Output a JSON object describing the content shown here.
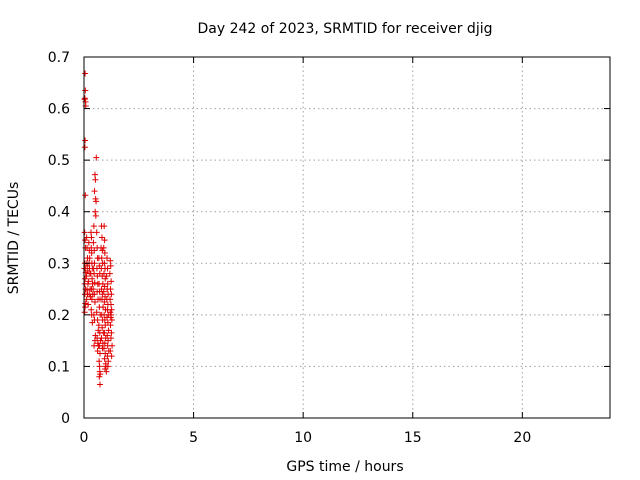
{
  "chart_data": {
    "type": "scatter",
    "title": "Day 242 of 2023, SRMTID for receiver djig",
    "xlabel": "GPS time / hours",
    "ylabel": "SRMTID / TECUs",
    "xlim": [
      0,
      24
    ],
    "ylim": [
      0,
      0.7
    ],
    "x_ticks": [
      0,
      5,
      10,
      15,
      20
    ],
    "x_tick_labels": [
      "0",
      "5",
      "10",
      "15",
      "20"
    ],
    "y_ticks": [
      0,
      0.1,
      0.2,
      0.3,
      0.4,
      0.5,
      0.6,
      0.7
    ],
    "y_tick_labels": [
      "0",
      "0.1",
      "0.2",
      "0.3",
      "0.4",
      "0.5",
      "0.6",
      "0.7"
    ],
    "grid": true,
    "marker": "+",
    "color": "#e00000",
    "series": [
      {
        "name": "SRMTID",
        "points": [
          [
            0.05,
            0.668
          ],
          [
            0.06,
            0.635
          ],
          [
            0.04,
            0.62
          ],
          [
            0.07,
            0.613
          ],
          [
            0.08,
            0.605
          ],
          [
            0.03,
            0.618
          ],
          [
            0.05,
            0.538
          ],
          [
            0.04,
            0.525
          ],
          [
            0.06,
            0.432
          ],
          [
            0.03,
            0.36
          ],
          [
            0.05,
            0.345
          ],
          [
            0.07,
            0.33
          ],
          [
            0.04,
            0.3
          ],
          [
            0.06,
            0.29
          ],
          [
            0.02,
            0.29
          ],
          [
            0.08,
            0.282
          ],
          [
            0.05,
            0.27
          ],
          [
            0.03,
            0.26
          ],
          [
            0.07,
            0.25
          ],
          [
            0.04,
            0.24
          ],
          [
            0.06,
            0.222
          ],
          [
            0.05,
            0.215
          ],
          [
            0.03,
            0.205
          ],
          [
            0.12,
            0.35
          ],
          [
            0.14,
            0.33
          ],
          [
            0.16,
            0.31
          ],
          [
            0.13,
            0.3
          ],
          [
            0.15,
            0.295
          ],
          [
            0.17,
            0.285
          ],
          [
            0.11,
            0.275
          ],
          [
            0.18,
            0.26
          ],
          [
            0.14,
            0.248
          ],
          [
            0.16,
            0.24
          ],
          [
            0.12,
            0.23
          ],
          [
            0.19,
            0.22
          ],
          [
            0.22,
            0.34
          ],
          [
            0.24,
            0.325
          ],
          [
            0.26,
            0.31
          ],
          [
            0.23,
            0.3
          ],
          [
            0.25,
            0.29
          ],
          [
            0.27,
            0.28
          ],
          [
            0.21,
            0.265
          ],
          [
            0.28,
            0.25
          ],
          [
            0.24,
            0.24
          ],
          [
            0.3,
            0.235
          ],
          [
            0.32,
            0.36
          ],
          [
            0.34,
            0.35
          ],
          [
            0.33,
            0.33
          ],
          [
            0.35,
            0.32
          ],
          [
            0.36,
            0.3
          ],
          [
            0.38,
            0.29
          ],
          [
            0.31,
            0.28
          ],
          [
            0.37,
            0.27
          ],
          [
            0.39,
            0.26
          ],
          [
            0.34,
            0.25
          ],
          [
            0.4,
            0.24
          ],
          [
            0.36,
            0.23
          ],
          [
            0.33,
            0.21
          ],
          [
            0.35,
            0.2
          ],
          [
            0.38,
            0.185
          ],
          [
            0.45,
            0.372
          ],
          [
            0.43,
            0.34
          ],
          [
            0.47,
            0.325
          ],
          [
            0.48,
            0.3
          ],
          [
            0.44,
            0.29
          ],
          [
            0.46,
            0.28
          ],
          [
            0.49,
            0.262
          ],
          [
            0.42,
            0.25
          ],
          [
            0.47,
            0.24
          ],
          [
            0.5,
            0.225
          ],
          [
            0.45,
            0.2
          ],
          [
            0.48,
            0.19
          ],
          [
            0.52,
            0.16
          ],
          [
            0.5,
            0.15
          ],
          [
            0.46,
            0.14
          ],
          [
            0.5,
            0.472
          ],
          [
            0.52,
            0.462
          ],
          [
            0.48,
            0.44
          ],
          [
            0.53,
            0.425
          ],
          [
            0.55,
            0.42
          ],
          [
            0.51,
            0.4
          ],
          [
            0.54,
            0.392
          ],
          [
            0.56,
            0.505
          ],
          [
            0.58,
            0.36
          ],
          [
            0.6,
            0.33
          ],
          [
            0.62,
            0.31
          ],
          [
            0.59,
            0.29
          ],
          [
            0.61,
            0.275
          ],
          [
            0.63,
            0.26
          ],
          [
            0.6,
            0.245
          ],
          [
            0.64,
            0.23
          ],
          [
            0.58,
            0.205
          ],
          [
            0.62,
            0.19
          ],
          [
            0.65,
            0.17
          ],
          [
            0.6,
            0.155
          ],
          [
            0.63,
            0.145
          ],
          [
            0.66,
            0.14
          ],
          [
            0.62,
            0.13
          ],
          [
            0.68,
            0.31
          ],
          [
            0.7,
            0.295
          ],
          [
            0.72,
            0.28
          ],
          [
            0.69,
            0.26
          ],
          [
            0.71,
            0.245
          ],
          [
            0.73,
            0.23
          ],
          [
            0.7,
            0.215
          ],
          [
            0.74,
            0.2
          ],
          [
            0.68,
            0.18
          ],
          [
            0.72,
            0.165
          ],
          [
            0.75,
            0.15
          ],
          [
            0.7,
            0.14
          ],
          [
            0.73,
            0.125
          ],
          [
            0.69,
            0.11
          ],
          [
            0.71,
            0.1
          ],
          [
            0.72,
            0.09
          ],
          [
            0.74,
            0.085
          ],
          [
            0.7,
            0.08
          ],
          [
            0.73,
            0.065
          ],
          [
            0.8,
            0.372
          ],
          [
            0.82,
            0.35
          ],
          [
            0.78,
            0.33
          ],
          [
            0.84,
            0.325
          ],
          [
            0.81,
            0.31
          ],
          [
            0.85,
            0.3
          ],
          [
            0.79,
            0.29
          ],
          [
            0.83,
            0.275
          ],
          [
            0.86,
            0.26
          ],
          [
            0.8,
            0.25
          ],
          [
            0.84,
            0.24
          ],
          [
            0.82,
            0.23
          ],
          [
            0.87,
            0.215
          ],
          [
            0.81,
            0.2
          ],
          [
            0.85,
            0.19
          ],
          [
            0.83,
            0.175
          ],
          [
            0.88,
            0.165
          ],
          [
            0.8,
            0.155
          ],
          [
            0.86,
            0.145
          ],
          [
            0.84,
            0.135
          ],
          [
            0.92,
            0.372
          ],
          [
            0.94,
            0.345
          ],
          [
            0.9,
            0.33
          ],
          [
            0.95,
            0.32
          ],
          [
            0.93,
            0.3
          ],
          [
            0.96,
            0.29
          ],
          [
            0.91,
            0.28
          ],
          [
            0.97,
            0.27
          ],
          [
            0.94,
            0.255
          ],
          [
            0.9,
            0.245
          ],
          [
            0.96,
            0.235
          ],
          [
            0.93,
            0.225
          ],
          [
            0.98,
            0.21
          ],
          [
            0.92,
            0.2
          ],
          [
            0.95,
            0.19
          ],
          [
            0.97,
            0.18
          ],
          [
            0.93,
            0.165
          ],
          [
            0.99,
            0.155
          ],
          [
            0.95,
            0.145
          ],
          [
            0.91,
            0.135
          ],
          [
            0.97,
            0.125
          ],
          [
            0.94,
            0.115
          ],
          [
            0.99,
            0.105
          ],
          [
            0.96,
            0.095
          ],
          [
            1.0,
            0.1
          ],
          [
            1.02,
            0.09
          ],
          [
            1.05,
            0.31
          ],
          [
            1.07,
            0.29
          ],
          [
            1.03,
            0.275
          ],
          [
            1.08,
            0.26
          ],
          [
            1.06,
            0.25
          ],
          [
            1.1,
            0.24
          ],
          [
            1.04,
            0.23
          ],
          [
            1.09,
            0.22
          ],
          [
            1.07,
            0.21
          ],
          [
            1.11,
            0.2
          ],
          [
            1.05,
            0.195
          ],
          [
            1.09,
            0.185
          ],
          [
            1.12,
            0.17
          ],
          [
            1.06,
            0.16
          ],
          [
            1.1,
            0.15
          ],
          [
            1.08,
            0.14
          ],
          [
            1.13,
            0.13
          ],
          [
            1.07,
            0.12
          ],
          [
            1.11,
            0.11
          ],
          [
            1.09,
            0.1
          ],
          [
            1.2,
            0.305
          ],
          [
            1.22,
            0.295
          ],
          [
            1.18,
            0.28
          ],
          [
            1.24,
            0.265
          ],
          [
            1.21,
            0.25
          ],
          [
            1.25,
            0.24
          ],
          [
            1.19,
            0.23
          ],
          [
            1.23,
            0.22
          ],
          [
            1.26,
            0.21
          ],
          [
            1.2,
            0.205
          ],
          [
            1.24,
            0.2
          ],
          [
            1.22,
            0.195
          ],
          [
            1.27,
            0.19
          ],
          [
            1.21,
            0.18
          ],
          [
            1.25,
            0.165
          ],
          [
            1.23,
            0.155
          ],
          [
            1.28,
            0.14
          ],
          [
            1.2,
            0.13
          ],
          [
            1.26,
            0.12
          ]
        ]
      }
    ]
  }
}
